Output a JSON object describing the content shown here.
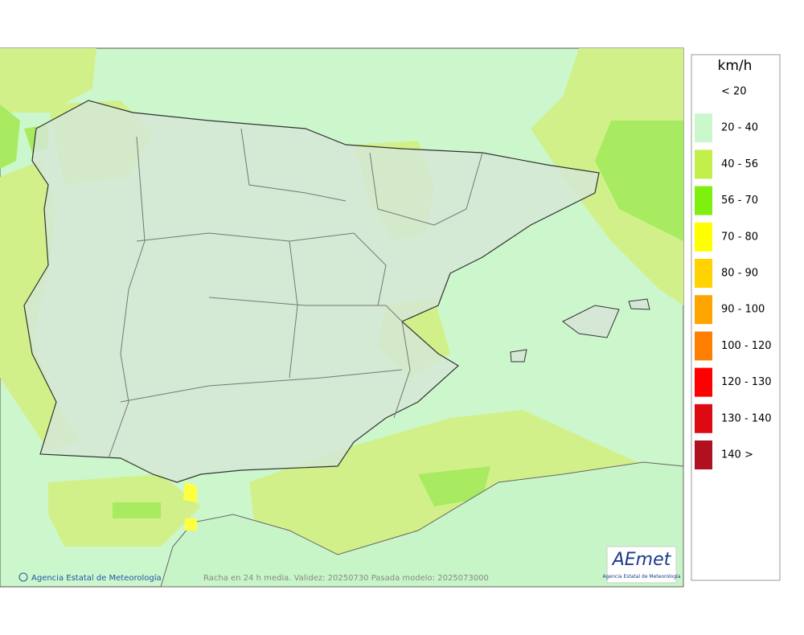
{
  "map": {
    "credit": "Agencia Estatal de Meteorología",
    "caption": "Racha en 24 h media. Validez: 20250730 Pasada modelo: 2025073000",
    "logo": {
      "name": "AEmet",
      "subtitle": "Agencia Estatal de Meteorología"
    }
  },
  "legend": {
    "title": "km/h",
    "items": [
      {
        "label": "< 20",
        "color": "#ffffff"
      },
      {
        "label": "20 - 40",
        "color": "#ccf7cc"
      },
      {
        "label": "40 - 56",
        "color": "#c2ef4a"
      },
      {
        "label": "56 - 70",
        "color": "#7ef010"
      },
      {
        "label": "70 - 80",
        "color": "#ffff00"
      },
      {
        "label": "80 - 90",
        "color": "#ffd200"
      },
      {
        "label": "90 - 100",
        "color": "#ffa500"
      },
      {
        "label": "100 - 120",
        "color": "#ff8000"
      },
      {
        "label": "120 - 130",
        "color": "#ff0000"
      },
      {
        "label": "130 - 140",
        "color": "#dd0a14"
      },
      {
        "label": "140 >",
        "color": "#b01020"
      }
    ]
  }
}
